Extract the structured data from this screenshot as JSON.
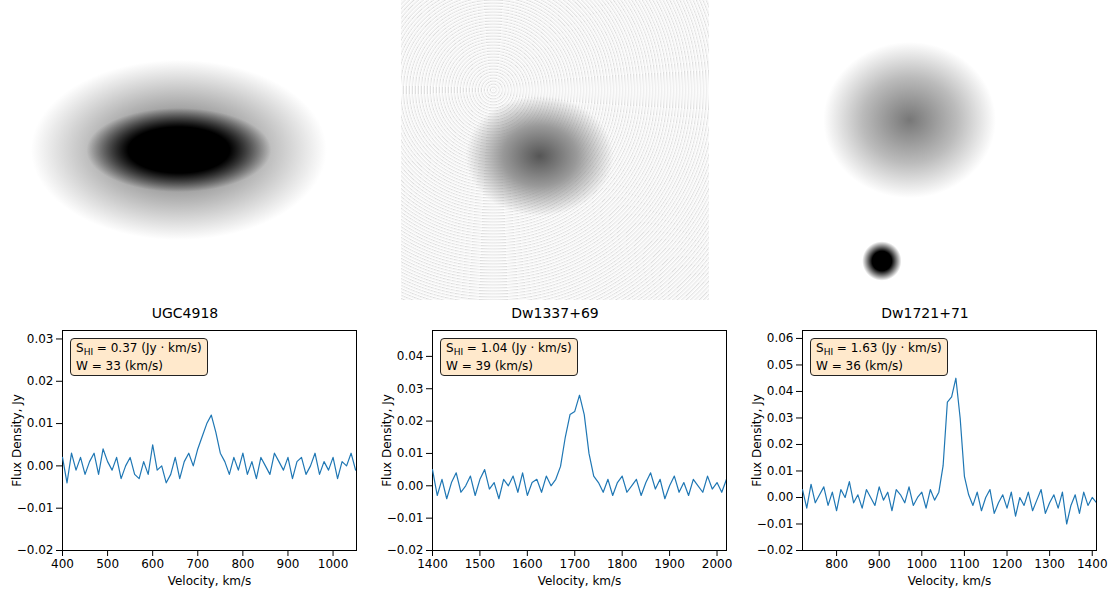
{
  "chart_data": [
    {
      "type": "line",
      "title": "UGC4918",
      "x_label": "Velocity, km/s",
      "y_label": "Flux Density, Jy",
      "color": "#1f77b4",
      "xlim": [
        400,
        1052
      ],
      "ylim": [
        -0.02,
        0.032
      ],
      "xticks": [
        400,
        500,
        600,
        700,
        800,
        900,
        1000
      ],
      "yticks": [
        {
          "value": -0.02,
          "label": "−0.02"
        },
        {
          "value": -0.01,
          "label": "−0.01"
        },
        {
          "value": 0,
          "label": "0.00"
        },
        {
          "value": 0.01,
          "label": "0.01"
        },
        {
          "value": 0.02,
          "label": "0.02"
        },
        {
          "value": 0.03,
          "label": "0.03"
        }
      ],
      "annotations": [
        [
          {
            "text": "S"
          },
          {
            "text": "HI",
            "sub": true
          },
          {
            "text": " = 0.37 (Jy · km/s)"
          }
        ],
        [
          {
            "text": "W = 33 (km/s)"
          }
        ]
      ],
      "x": [
        400,
        410,
        420,
        430,
        440,
        450,
        460,
        470,
        480,
        490,
        500,
        510,
        520,
        530,
        540,
        550,
        560,
        570,
        580,
        590,
        600,
        610,
        620,
        630,
        640,
        650,
        660,
        670,
        680,
        690,
        700,
        710,
        720,
        730,
        740,
        750,
        760,
        770,
        780,
        790,
        800,
        810,
        820,
        830,
        840,
        850,
        860,
        870,
        880,
        890,
        900,
        910,
        920,
        930,
        940,
        950,
        960,
        970,
        980,
        990,
        1000,
        1010,
        1020,
        1030,
        1040,
        1050
      ],
      "values": [
        0.002,
        -0.004,
        0.003,
        -0.001,
        0.002,
        -0.002,
        0.001,
        0.003,
        -0.002,
        0.004,
        0.001,
        -0.001,
        0.002,
        -0.003,
        0.0,
        0.002,
        -0.002,
        -0.003,
        0.001,
        -0.002,
        0.005,
        -0.001,
        0.0,
        -0.004,
        -0.002,
        0.002,
        -0.003,
        0.001,
        0.003,
        0.0,
        0.004,
        0.007,
        0.01,
        0.012,
        0.008,
        0.003,
        0.001,
        -0.002,
        0.002,
        -0.001,
        0.003,
        -0.002,
        0.001,
        -0.003,
        0.002,
        0.0,
        -0.002,
        0.003,
        0.001,
        -0.001,
        0.002,
        -0.003,
        0.001,
        0.002,
        -0.002,
        0.0,
        0.003,
        -0.002,
        0.001,
        -0.001,
        0.002,
        -0.003,
        0.001,
        0.0,
        0.003,
        -0.001
      ]
    },
    {
      "type": "line",
      "title": "Dw1337+69",
      "x_label": "Velocity, km/s",
      "y_label": "Flux Density, Jy",
      "color": "#1f77b4",
      "xlim": [
        1400,
        2020
      ],
      "ylim": [
        -0.02,
        0.048
      ],
      "xticks": [
        1400,
        1500,
        1600,
        1700,
        1800,
        1900,
        2000
      ],
      "yticks": [
        {
          "value": -0.02,
          "label": "−0.02"
        },
        {
          "value": -0.01,
          "label": "−0.01"
        },
        {
          "value": 0,
          "label": "0.00"
        },
        {
          "value": 0.01,
          "label": "0.01"
        },
        {
          "value": 0.02,
          "label": "0.02"
        },
        {
          "value": 0.03,
          "label": "0.03"
        },
        {
          "value": 0.04,
          "label": "0.04"
        }
      ],
      "annotations": [
        [
          {
            "text": "S"
          },
          {
            "text": "HI",
            "sub": true
          },
          {
            "text": " = 1.04 (Jy · km/s)"
          }
        ],
        [
          {
            "text": "W = 39 (km/s)"
          }
        ]
      ],
      "x": [
        1400,
        1410,
        1420,
        1430,
        1440,
        1450,
        1460,
        1470,
        1480,
        1490,
        1500,
        1510,
        1520,
        1530,
        1540,
        1550,
        1560,
        1570,
        1580,
        1590,
        1600,
        1610,
        1620,
        1630,
        1640,
        1650,
        1660,
        1670,
        1680,
        1690,
        1700,
        1710,
        1720,
        1730,
        1740,
        1750,
        1760,
        1770,
        1780,
        1790,
        1800,
        1810,
        1820,
        1830,
        1840,
        1850,
        1860,
        1870,
        1880,
        1890,
        1900,
        1910,
        1920,
        1930,
        1940,
        1950,
        1960,
        1970,
        1980,
        1990,
        2000,
        2010,
        2020
      ],
      "values": [
        0.005,
        -0.003,
        0.002,
        -0.004,
        0.001,
        0.004,
        -0.002,
        0.0,
        0.003,
        -0.003,
        0.002,
        0.005,
        -0.001,
        0.001,
        -0.004,
        0.002,
        0.0,
        0.003,
        -0.002,
        0.004,
        -0.003,
        0.001,
        0.002,
        -0.002,
        0.003,
        0.0,
        0.002,
        0.006,
        0.015,
        0.022,
        0.023,
        0.028,
        0.022,
        0.01,
        0.003,
        0.001,
        -0.002,
        0.002,
        -0.003,
        0.001,
        0.003,
        -0.002,
        0.0,
        0.002,
        -0.003,
        0.001,
        0.004,
        -0.001,
        0.002,
        -0.004,
        0.0,
        0.003,
        -0.002,
        0.001,
        -0.003,
        0.002,
        0.0,
        -0.002,
        0.003,
        -0.001,
        0.001,
        -0.002,
        0.002
      ]
    },
    {
      "type": "line",
      "title": "Dw1721+71",
      "x_label": "Velocity, km/s",
      "y_label": "Flux Density, Jy",
      "color": "#1f77b4",
      "xlim": [
        720,
        1410
      ],
      "ylim": [
        -0.02,
        0.063
      ],
      "xticks": [
        800,
        900,
        1000,
        1100,
        1200,
        1300,
        1400
      ],
      "yticks": [
        {
          "value": -0.02,
          "label": "−0.02"
        },
        {
          "value": -0.01,
          "label": "−0.01"
        },
        {
          "value": 0,
          "label": "0.00"
        },
        {
          "value": 0.01,
          "label": "0.01"
        },
        {
          "value": 0.02,
          "label": "0.02"
        },
        {
          "value": 0.03,
          "label": "0.03"
        },
        {
          "value": 0.04,
          "label": "0.04"
        },
        {
          "value": 0.05,
          "label": "0.05"
        },
        {
          "value": 0.06,
          "label": "0.06"
        }
      ],
      "annotations": [
        [
          {
            "text": "S"
          },
          {
            "text": "HI",
            "sub": true
          },
          {
            "text": " = 1.63 (Jy · km/s)"
          }
        ],
        [
          {
            "text": "W = 36 (km/s)"
          }
        ]
      ],
      "x": [
        720,
        730,
        740,
        750,
        760,
        770,
        780,
        790,
        800,
        810,
        820,
        830,
        840,
        850,
        860,
        870,
        880,
        890,
        900,
        910,
        920,
        930,
        940,
        950,
        960,
        970,
        980,
        990,
        1000,
        1010,
        1020,
        1030,
        1040,
        1050,
        1060,
        1070,
        1080,
        1090,
        1100,
        1110,
        1120,
        1130,
        1140,
        1150,
        1160,
        1170,
        1180,
        1190,
        1200,
        1210,
        1220,
        1230,
        1240,
        1250,
        1260,
        1270,
        1280,
        1290,
        1300,
        1310,
        1320,
        1330,
        1340,
        1350,
        1360,
        1370,
        1380,
        1390,
        1400,
        1410
      ],
      "values": [
        0.003,
        -0.004,
        0.005,
        -0.002,
        0.001,
        0.004,
        -0.003,
        0.002,
        -0.005,
        0.003,
        0.0,
        0.006,
        -0.002,
        0.001,
        -0.004,
        0.003,
        0.0,
        -0.003,
        0.004,
        -0.001,
        0.002,
        -0.005,
        0.003,
        0.001,
        -0.002,
        0.004,
        -0.003,
        0.0,
        0.002,
        -0.004,
        0.003,
        -0.001,
        0.002,
        0.012,
        0.036,
        0.038,
        0.045,
        0.03,
        0.008,
        0.001,
        -0.003,
        0.002,
        -0.005,
        0.0,
        0.003,
        -0.006,
        -0.002,
        0.001,
        -0.004,
        0.002,
        -0.007,
        0.0,
        -0.003,
        0.002,
        -0.005,
        -0.001,
        0.003,
        -0.006,
        -0.002,
        0.001,
        -0.004,
        0.002,
        -0.01,
        -0.003,
        0.001,
        -0.006,
        0.002,
        -0.003,
        0.0,
        -0.002
      ]
    }
  ]
}
